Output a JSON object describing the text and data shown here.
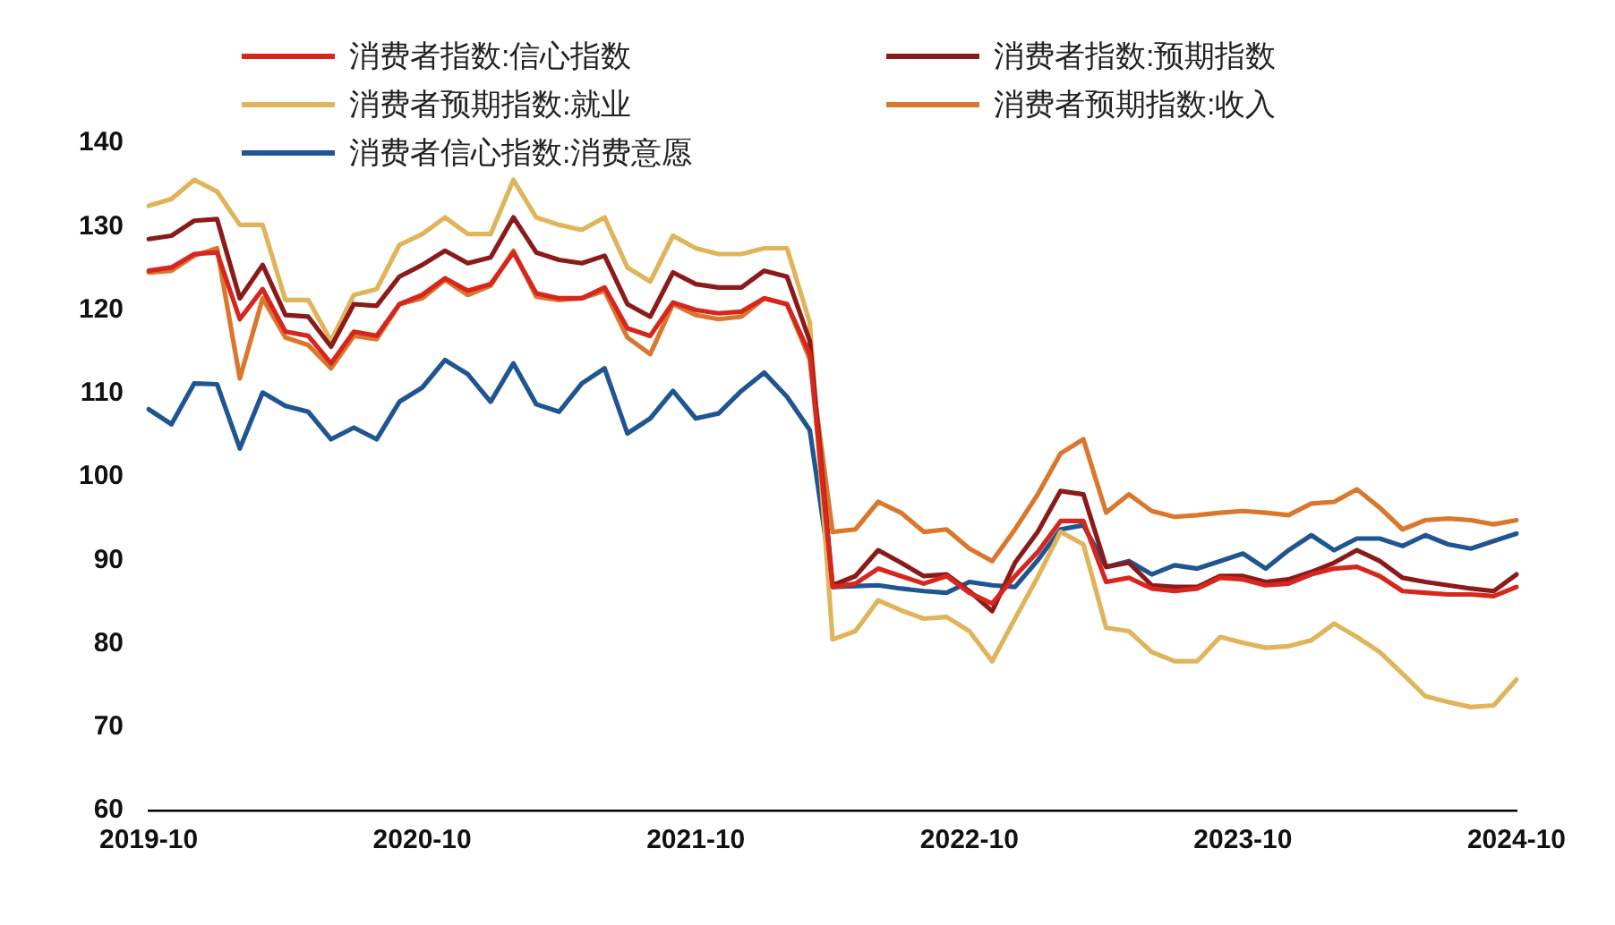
{
  "chart_data": {
    "type": "line",
    "categories": [
      "2019-10",
      null,
      null,
      null,
      null,
      null,
      null,
      null,
      null,
      null,
      null,
      null,
      "2020-10",
      null,
      null,
      null,
      null,
      null,
      null,
      null,
      null,
      null,
      null,
      null,
      "2021-10",
      null,
      null,
      null,
      null,
      null,
      null,
      null,
      null,
      null,
      null,
      null,
      "2022-10",
      null,
      null,
      null,
      null,
      null,
      null,
      null,
      null,
      null,
      null,
      null,
      "2023-10",
      null,
      null,
      null,
      null,
      null,
      null,
      null,
      null,
      null,
      null,
      null,
      "2024-10"
    ],
    "ylim": [
      60,
      140
    ],
    "yticks": [
      60,
      70,
      80,
      90,
      100,
      110,
      120,
      130,
      140
    ],
    "grid": false,
    "legend": "top",
    "marker": "none",
    "line_style": "solid",
    "series": [
      {
        "name": "消费者指数:信心指数",
        "color": "#d7261e",
        "values": [
          124.7,
          125.1,
          126.7,
          126.9,
          118.9,
          122.5,
          117.4,
          116.9,
          113.6,
          117.4,
          116.9,
          120.7,
          121.8,
          123.8,
          122.3,
          123.1,
          126.9,
          122,
          121.4,
          121.4,
          122.7,
          117.8,
          116.9,
          120.9,
          120,
          119.6,
          119.8,
          121.4,
          120.7,
          114.7,
          86.8,
          87.2,
          89,
          88.1,
          87.2,
          88.1,
          86.1,
          84.8,
          88.1,
          91,
          94.7,
          94.7,
          87.4,
          87.9,
          86.6,
          86.3,
          86.6,
          87.9,
          87.7,
          87,
          87.2,
          88.3,
          89,
          89.2,
          88.1,
          86.3,
          86.1,
          85.9,
          85.9,
          85.7,
          86.8
        ]
      },
      {
        "name": "消费者指数:预期指数",
        "color": "#8b1a1a",
        "values": [
          128.5,
          128.9,
          130.7,
          130.9,
          121.4,
          125.4,
          119.4,
          119.2,
          115.6,
          120.7,
          120.5,
          124,
          125.4,
          127.1,
          125.6,
          126.3,
          131.1,
          126.9,
          126,
          125.6,
          126.5,
          120.7,
          119.2,
          124.5,
          123.1,
          122.7,
          122.7,
          124.7,
          124,
          116.3,
          87,
          88.1,
          91.2,
          89.7,
          88.1,
          88.3,
          86.3,
          83.9,
          89.7,
          93.4,
          98.3,
          97.9,
          89.2,
          89.7,
          87,
          86.8,
          86.8,
          88.1,
          88.1,
          87.4,
          87.7,
          88.6,
          89.7,
          91.2,
          89.9,
          87.9,
          87.4,
          87,
          86.6,
          86.3,
          88.3
        ]
      },
      {
        "name": "消费者预期指数:就业",
        "color": "#e0b45a",
        "values": [
          132.5,
          133.3,
          135.6,
          134.2,
          130.2,
          130.2,
          121.2,
          121.2,
          116.3,
          121.8,
          122.5,
          127.8,
          129.1,
          131.1,
          129.1,
          129.1,
          135.6,
          131.1,
          130.2,
          129.6,
          131.1,
          125.1,
          123.4,
          128.9,
          127.4,
          126.7,
          126.7,
          127.4,
          127.4,
          118.5,
          80.5,
          81.5,
          85.2,
          84,
          83,
          83.2,
          81.5,
          77.9,
          83,
          88,
          93.4,
          91.9,
          81.9,
          81.5,
          79,
          77.9,
          77.9,
          80.8,
          80.1,
          79.5,
          79.7,
          80.4,
          82.4,
          80.8,
          79,
          76.4,
          73.7,
          73,
          72.4,
          72.6,
          75.7
        ]
      },
      {
        "name": "消费者预期指数:收入",
        "color": "#d9782d",
        "values": [
          124.5,
          124.7,
          126.5,
          127.4,
          111.8,
          121.4,
          116.7,
          115.8,
          113,
          116.9,
          116.5,
          120.7,
          121.4,
          123.6,
          121.8,
          122.9,
          127.1,
          121.6,
          121.2,
          121.4,
          122.3,
          116.7,
          114.7,
          120.7,
          119.4,
          118.9,
          119.2,
          121.4,
          120.7,
          114.1,
          93.4,
          93.7,
          97,
          95.7,
          93.4,
          93.7,
          91.4,
          89.9,
          93.7,
          97.9,
          102.8,
          104.5,
          95.7,
          97.9,
          95.9,
          95.2,
          95.4,
          95.7,
          95.9,
          95.7,
          95.4,
          96.8,
          97,
          98.5,
          96.3,
          93.7,
          94.8,
          95,
          94.8,
          94.3,
          94.8
        ]
      },
      {
        "name": "消费者信心指数:消费意愿",
        "color": "#1f5591",
        "values": [
          108.1,
          106.3,
          111.2,
          111.1,
          103.4,
          110.1,
          108.5,
          107.8,
          104.5,
          105.9,
          104.5,
          109,
          110.7,
          114,
          112.3,
          109,
          113.6,
          108.7,
          107.8,
          111.2,
          113,
          105.2,
          107,
          110.3,
          107,
          107.6,
          110.3,
          112.5,
          109.6,
          105.6,
          86.8,
          86.9,
          87,
          86.6,
          86.3,
          86.1,
          87.4,
          87,
          86.8,
          90,
          93.7,
          94.2,
          89.2,
          89.9,
          88.3,
          89.4,
          89,
          89.9,
          90.8,
          89,
          91.2,
          93,
          91.2,
          92.6,
          92.6,
          91.7,
          93,
          91.9,
          91.4,
          92.3,
          93.2
        ]
      }
    ]
  }
}
